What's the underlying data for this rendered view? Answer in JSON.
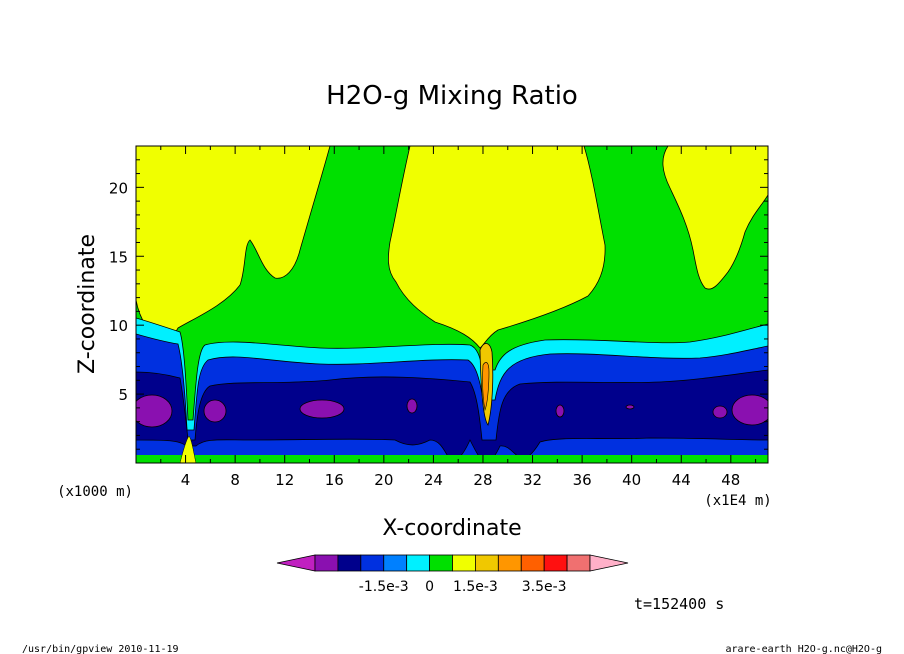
{
  "chart_data": {
    "type": "heatmap",
    "subtype": "filled-contour",
    "title": "H2O-g Mixing Ratio",
    "xlabel": "X-coordinate",
    "ylabel": "Z-coordinate",
    "x_unit_label": "(x1E4 m)",
    "y_unit_label": "(x1000 m)",
    "xlim": [
      0,
      51
    ],
    "ylim": [
      0,
      23
    ],
    "x_ticks": [
      4,
      8,
      12,
      16,
      20,
      24,
      28,
      32,
      36,
      40,
      44,
      48
    ],
    "x_tick_labels": [
      "4",
      "8",
      "12",
      "16",
      "20",
      "24",
      "28",
      "32",
      "36",
      "40",
      "44",
      "48"
    ],
    "y_ticks": [
      5,
      10,
      15,
      20
    ],
    "y_tick_labels": [
      "5",
      "10",
      "15",
      "20"
    ],
    "colorbar": {
      "colors": [
        "#c020c0",
        "#8a10b0",
        "#00008c",
        "#0030e0",
        "#0080ff",
        "#00f0ff",
        "#00e000",
        "#f0ff00",
        "#f0c800",
        "#ff9600",
        "#ff6000",
        "#ff1010",
        "#f07070",
        "#ffb0c8"
      ],
      "tick_labels": [
        "-1.5e-3",
        "0",
        "1.5e-3",
        "3.5e-3"
      ]
    },
    "time_label": "t=152400 s",
    "footer_left": "/usr/bin/gpview   2010-11-19",
    "footer_right": "arare-earth_H2O-g.nc@H2O-g",
    "bands": [
      {
        "name": "yellow",
        "color": "#f0ff00",
        "z_low": 10,
        "z_high": 23
      },
      {
        "name": "green",
        "color": "#00e000",
        "z_low": 9.5,
        "z_high": 23
      },
      {
        "name": "cyan",
        "color": "#00f0ff",
        "z_low": 8.5,
        "z_high": 9.5
      },
      {
        "name": "blue",
        "color": "#0030e0",
        "z_low": 7,
        "z_high": 8.5
      },
      {
        "name": "navy",
        "color": "#00008c",
        "z_low": 1.5,
        "z_high": 7
      },
      {
        "name": "purple",
        "color": "#8a10b0",
        "z_low": 3,
        "z_high": 4.5
      }
    ]
  }
}
